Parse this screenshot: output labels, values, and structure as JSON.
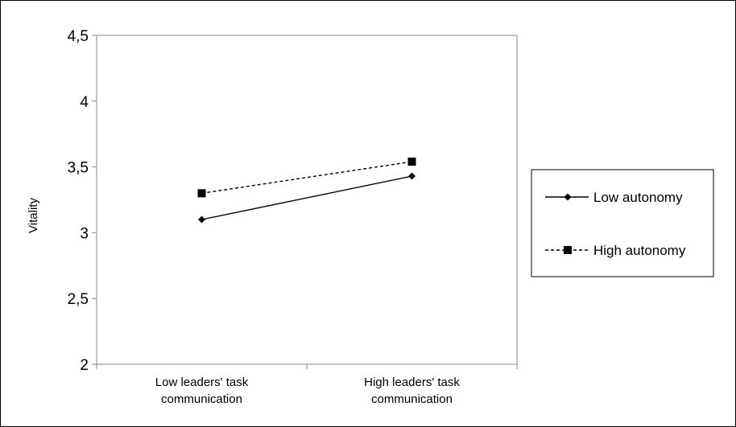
{
  "chart_data": {
    "type": "line",
    "categories": [
      "Low leaders' task communication",
      "High leaders' task communication"
    ],
    "category_lines": [
      [
        "Low leaders' task",
        "communication"
      ],
      [
        "High leaders' task",
        "communication"
      ]
    ],
    "series": [
      {
        "name": "Low autonomy",
        "values": [
          3.1,
          3.43
        ],
        "marker": "diamond",
        "line": "solid"
      },
      {
        "name": "High autonomy",
        "values": [
          3.3,
          3.54
        ],
        "marker": "square",
        "line": "dashed"
      }
    ],
    "ylabel": "Vitality",
    "ylim": [
      2,
      4.5
    ],
    "yticks": [
      "2",
      "2,5",
      "3",
      "3,5",
      "4",
      "4,5"
    ],
    "ytick_values": [
      2,
      2.5,
      3,
      3.5,
      4,
      4.5
    ],
    "legend": "right",
    "grid": false
  }
}
